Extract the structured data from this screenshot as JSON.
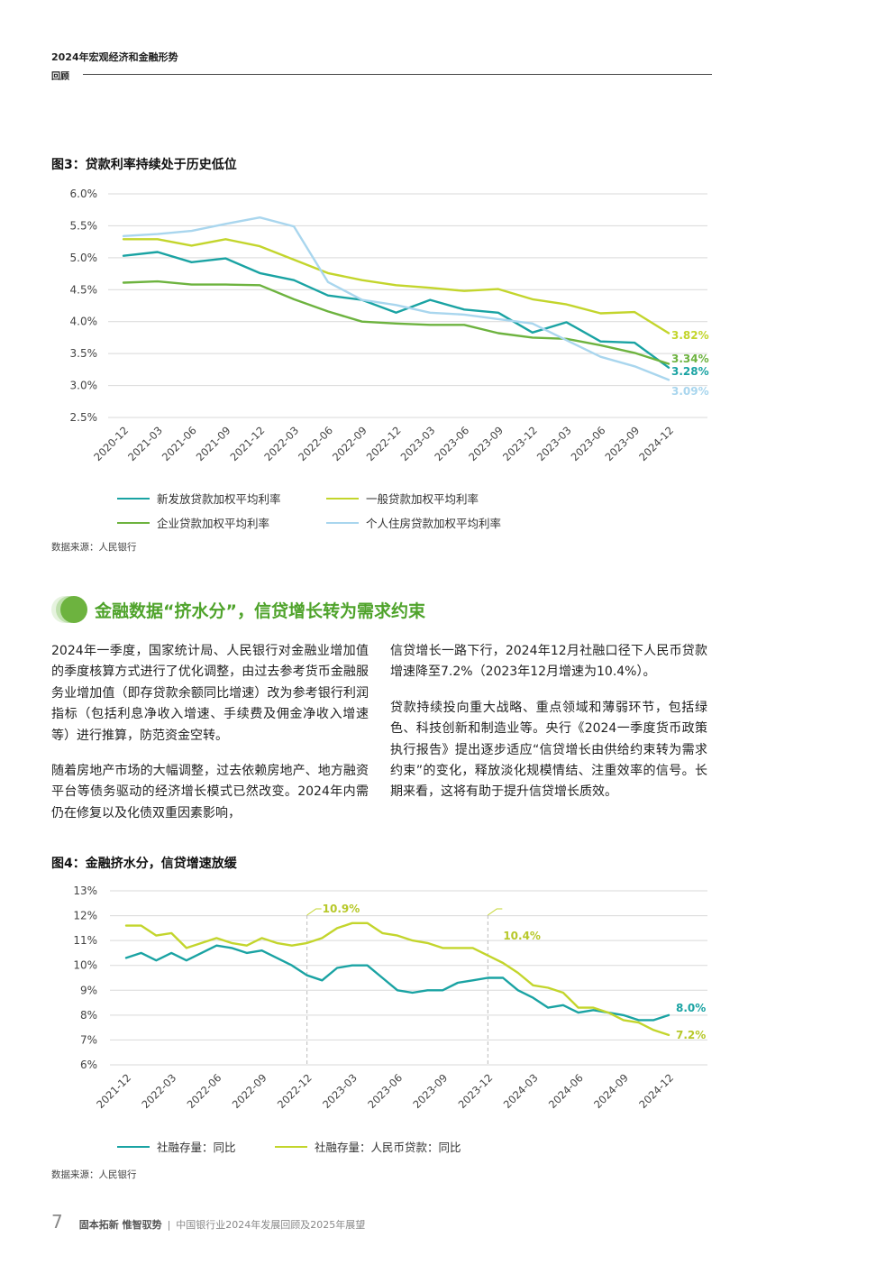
{
  "header": {
    "title": "2024年宏观经济和金融形势",
    "subtitle": "回顾"
  },
  "colors": {
    "teal": "#1aa3a3",
    "lime": "#c3d52c",
    "green": "#6db33f",
    "light_blue": "#a9d6ee",
    "section_green": "#4fa32b",
    "grid": "#d9d9d9",
    "axis": "#555555"
  },
  "figure3": {
    "title": "图3：贷款利率持续处于历史低位",
    "source": "数据来源：人民银行",
    "legend": [
      "新发放贷款加权平均利率",
      "一般贷款加权平均利率",
      "企业贷款加权平均利率",
      "个人住房贷款加权平均利率"
    ]
  },
  "figure4": {
    "title": "图4：金融挤水分，信贷增速放缓",
    "source": "数据来源：人民银行",
    "legend": [
      "社融存量：同比",
      "社融存量：人民币贷款：同比"
    ]
  },
  "section": {
    "title": "金融数据“挤水分”，信贷增长转为需求约束",
    "left_col": [
      "2024年一季度，国家统计局、人民银行对金融业增加值的季度核算方式进行了优化调整，由过去参考货币金融服务业增加值（即存贷款余额同比增速）改为参考银行利润指标（包括利息净收入增速、手续费及佣金净收入增速等）进行推算，防范资金空转。",
      "随着房地产市场的大幅调整，过去依赖房地产、地方融资平台等债务驱动的经济增长模式已然改变。2024年内需仍在修复以及化债双重因素影响，"
    ],
    "right_col": [
      "信贷增长一路下行，2024年12月社融口径下人民币贷款增速降至7.2%（2023年12月增速为10.4%）。",
      "贷款持续投向重大战略、重点领域和薄弱环节，包括绿色、科技创新和制造业等。央行《2024一季度货币政策执行报告》提出逐步适应“信贷增长由供给约束转为需求约束”的变化，释放淡化规模情结、注重效率的信号。长期来看，这将有助于提升信贷增长质效。"
    ]
  },
  "footer": {
    "page": "7",
    "brand": "固本拓新 惟智驭势",
    "separator": "|",
    "doc": "中国银行业2024年发展回顾及2025年展望"
  },
  "chart_data": [
    {
      "type": "line",
      "title": "图3：贷款利率持续处于历史低位",
      "x": [
        "2020-12",
        "2021-03",
        "2021-06",
        "2021-09",
        "2021-12",
        "2022-03",
        "2022-06",
        "2022-09",
        "2022-12",
        "2023-03",
        "2023-06",
        "2023-09",
        "2023-12",
        "2023-03",
        "2023-06",
        "2023-09",
        "2024-12"
      ],
      "x_tick_labels": [
        "2020-12",
        "2021-03",
        "2021-06",
        "2021-09",
        "2021-12",
        "2022-03",
        "2022-06",
        "2022-09",
        "2022-12",
        "2023-03",
        "2023-06",
        "2023-09",
        "2023-12",
        "2023-03",
        "2023-06",
        "2023-09",
        "2024-12"
      ],
      "y_ticks": [
        "6.0%",
        "5.5%",
        "5.0%",
        "4.5%",
        "4.0%",
        "3.5%",
        "3.0%",
        "2.5%"
      ],
      "ylim": [
        2.5,
        6.0
      ],
      "grid": true,
      "legend_position": "bottom",
      "series": [
        {
          "name": "新发放贷款加权平均利率",
          "color": "#1aa3a3",
          "end_label": "3.28%",
          "points": [
            [
              0,
              5.03
            ],
            [
              1,
              5.09
            ],
            [
              2,
              4.93
            ],
            [
              3,
              4.99
            ],
            [
              4,
              4.76
            ],
            [
              5,
              4.65
            ],
            [
              6,
              4.41
            ],
            [
              7,
              4.34
            ],
            [
              8,
              4.14
            ],
            [
              9,
              4.34
            ],
            [
              10,
              4.19
            ],
            [
              11,
              4.14
            ],
            [
              12,
              3.83
            ],
            [
              13,
              3.99
            ],
            [
              14,
              3.69
            ],
            [
              15,
              3.67
            ],
            [
              16,
              3.28
            ]
          ]
        },
        {
          "name": "一般贷款加权平均利率",
          "color": "#c3d52c",
          "end_label": "3.82%",
          "points": [
            [
              0,
              5.29
            ],
            [
              1,
              5.29
            ],
            [
              2,
              5.19
            ],
            [
              3,
              5.29
            ],
            [
              4,
              5.18
            ],
            [
              5,
              4.97
            ],
            [
              6,
              4.76
            ],
            [
              7,
              4.65
            ],
            [
              8,
              4.57
            ],
            [
              9,
              4.53
            ],
            [
              10,
              4.48
            ],
            [
              11,
              4.51
            ],
            [
              12,
              4.35
            ],
            [
              13,
              4.27
            ],
            [
              14,
              4.13
            ],
            [
              15,
              4.15
            ],
            [
              16,
              3.82
            ]
          ]
        },
        {
          "name": "企业贷款加权平均利率",
          "color": "#6db33f",
          "end_label": "3.34%",
          "points": [
            [
              0,
              4.61
            ],
            [
              1,
              4.63
            ],
            [
              2,
              4.58
            ],
            [
              3,
              4.58
            ],
            [
              4,
              4.57
            ],
            [
              5,
              4.35
            ],
            [
              6,
              4.16
            ],
            [
              7,
              4.0
            ],
            [
              8,
              3.97
            ],
            [
              9,
              3.95
            ],
            [
              10,
              3.95
            ],
            [
              11,
              3.82
            ],
            [
              12,
              3.75
            ],
            [
              13,
              3.73
            ],
            [
              14,
              3.63
            ],
            [
              15,
              3.51
            ],
            [
              16,
              3.34
            ]
          ]
        },
        {
          "name": "个人住房贷款加权平均利率",
          "color": "#a9d6ee",
          "end_label": "3.09%",
          "points": [
            [
              0,
              5.34
            ],
            [
              1,
              5.37
            ],
            [
              2,
              5.42
            ],
            [
              3,
              5.53
            ],
            [
              4,
              5.63
            ],
            [
              5,
              5.49
            ],
            [
              6,
              4.62
            ],
            [
              7,
              4.34
            ],
            [
              8,
              4.26
            ],
            [
              9,
              4.14
            ],
            [
              10,
              4.11
            ],
            [
              11,
              4.04
            ],
            [
              12,
              3.97
            ],
            [
              13,
              3.71
            ],
            [
              14,
              3.45
            ],
            [
              15,
              3.3
            ],
            [
              16,
              3.09
            ]
          ]
        }
      ]
    },
    {
      "type": "line",
      "title": "图4：金融挤水分，信贷增速放缓",
      "x_tick_labels": [
        "2021-12",
        "2022-03",
        "2022-06",
        "2022-09",
        "2022-12",
        "2023-03",
        "2023-06",
        "2023-09",
        "2023-12",
        "2024-03",
        "2024-06",
        "2024-09",
        "2024-12"
      ],
      "x_range": [
        0,
        36
      ],
      "y_ticks": [
        "13%",
        "12%",
        "11%",
        "10%",
        "9%",
        "8%",
        "7%",
        "6%"
      ],
      "ylim": [
        6,
        13
      ],
      "grid": true,
      "legend_position": "bottom",
      "annotations": [
        {
          "x": 12,
          "label": "10.9%"
        },
        {
          "x": 24,
          "label": "10.4%"
        }
      ],
      "series": [
        {
          "name": "社融存量：同比",
          "color": "#1aa3a3",
          "end_label": "8.0%",
          "values": [
            10.3,
            10.5,
            10.2,
            10.5,
            10.2,
            10.5,
            10.8,
            10.7,
            10.5,
            10.6,
            10.3,
            10.0,
            9.6,
            9.4,
            9.9,
            10.0,
            10.0,
            9.5,
            9.0,
            8.9,
            9.0,
            9.0,
            9.3,
            9.4,
            9.5,
            9.5,
            9.0,
            8.7,
            8.3,
            8.4,
            8.1,
            8.2,
            8.1,
            8.0,
            7.8,
            7.8,
            8.0
          ]
        },
        {
          "name": "社融存量：人民币贷款：同比",
          "color": "#c3d52c",
          "end_label": "7.2%",
          "values": [
            11.6,
            11.6,
            11.2,
            11.3,
            10.7,
            10.9,
            11.1,
            10.9,
            10.8,
            11.1,
            10.9,
            10.8,
            10.9,
            11.1,
            11.5,
            11.7,
            11.7,
            11.3,
            11.2,
            11.0,
            10.9,
            10.7,
            10.7,
            10.7,
            10.4,
            10.1,
            9.7,
            9.2,
            9.1,
            8.9,
            8.3,
            8.3,
            8.1,
            7.8,
            7.7,
            7.4,
            7.2
          ]
        }
      ]
    }
  ]
}
